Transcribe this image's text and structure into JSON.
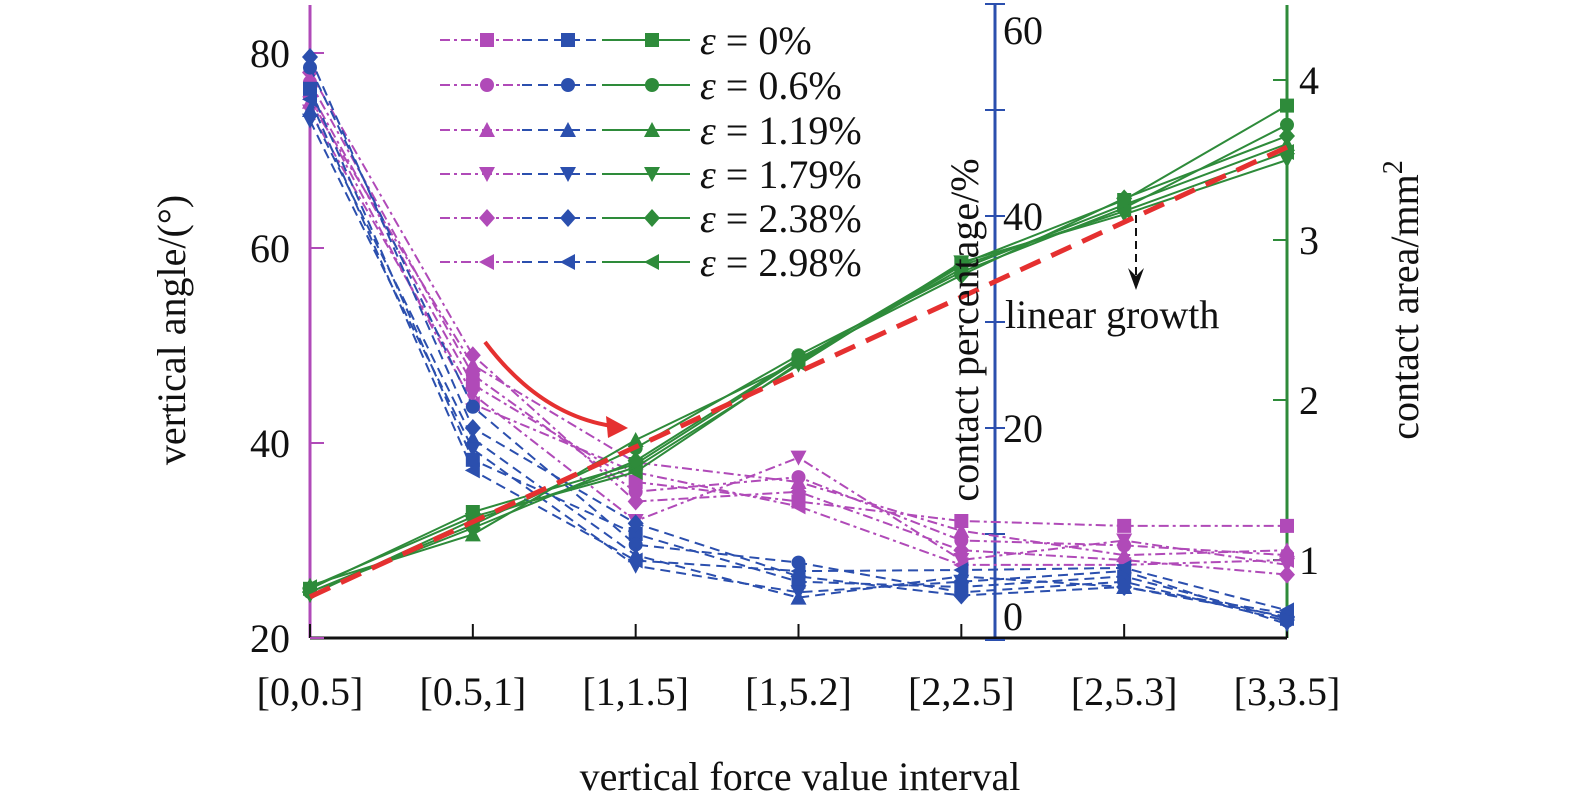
{
  "chart_data": {
    "type": "line",
    "xlabel": "vertical force value interval",
    "categories": [
      "[0,0.5]",
      "[0.5,1]",
      "[1,1.5]",
      "[1,5.2]",
      "[2,2.5]",
      "[2,5.3]",
      "[3,3.5]"
    ],
    "axes": {
      "left": {
        "label": "vertical angle/(°)",
        "ylim": [
          20,
          85
        ],
        "ticks": [
          20,
          40,
          60,
          80
        ],
        "color": "#b04ab8"
      },
      "middle": {
        "label": "contact percentage/%",
        "ylim": [
          0,
          60
        ],
        "ticks": [
          0,
          20,
          40,
          60
        ],
        "color": "#2b4fae"
      },
      "right": {
        "label": "contact area/mm",
        "label_sup": "2",
        "ylim": [
          0.49,
          4.45
        ],
        "ticks": [
          1,
          2,
          3,
          4
        ],
        "color": "#2e8b3a"
      }
    },
    "legend_labels": [
      "ε = 0%",
      "ε = 0.6%",
      "ε = 1.19%",
      "ε = 1.79%",
      "ε = 2.38%",
      "ε = 2.98%"
    ],
    "legend_placement": "top-center",
    "markers": [
      "square",
      "circle",
      "triangle-up",
      "triangle-down",
      "diamond",
      "triangle-left"
    ],
    "groups": [
      {
        "axis": "left",
        "style": "dash-dot",
        "color": "#b04ab8",
        "series": [
          [
            76,
            46,
            36,
            34,
            32,
            31.5,
            31.5
          ],
          [
            77,
            47,
            35,
            36.5,
            30,
            29.5,
            28.5
          ],
          [
            75,
            48,
            38,
            36,
            31,
            28.5,
            29
          ],
          [
            74,
            45,
            32,
            38.5,
            28,
            30,
            27.5
          ],
          [
            78,
            49,
            34,
            35,
            29,
            28,
            26.5
          ],
          [
            75.5,
            44,
            37,
            33.5,
            27.5,
            27.5,
            28
          ]
        ]
      },
      {
        "axis": "middle",
        "style": "dashed",
        "color": "#2b4fae",
        "series": [
          [
            52,
            17,
            10,
            5.5,
            5,
            6,
            2
          ],
          [
            54,
            22,
            9,
            7.3,
            4.5,
            5.5,
            1.8
          ],
          [
            50,
            19,
            8,
            4,
            6,
            5,
            2.5
          ],
          [
            49,
            18,
            7,
            4.5,
            5.5,
            6.5,
            1.5
          ],
          [
            55,
            20,
            11,
            6,
            4.2,
            5,
            2.2
          ],
          [
            51,
            16,
            7.5,
            6.5,
            6.6,
            6.8,
            2.8
          ]
        ]
      },
      {
        "axis": "right",
        "style": "solid",
        "color": "#2e8b3a",
        "series": [
          [
            0.82,
            1.3,
            1.6,
            2.25,
            2.85,
            3.25,
            3.84
          ],
          [
            0.8,
            1.22,
            1.7,
            2.28,
            2.8,
            3.2,
            3.72
          ],
          [
            0.84,
            1.16,
            1.75,
            2.24,
            2.82,
            3.22,
            3.6
          ],
          [
            0.78,
            1.25,
            1.58,
            2.22,
            2.86,
            3.16,
            3.5
          ],
          [
            0.8,
            1.2,
            1.62,
            2.26,
            2.78,
            3.26,
            3.65
          ],
          [
            0.83,
            1.27,
            1.55,
            2.23,
            2.84,
            3.18,
            3.55
          ]
        ]
      }
    ],
    "fit_line": {
      "axis": "right",
      "color": "#e53030",
      "style": "dashed",
      "values": [
        0.77,
        3.58
      ]
    },
    "annotations": {
      "linear_growth": "linear growth"
    }
  }
}
